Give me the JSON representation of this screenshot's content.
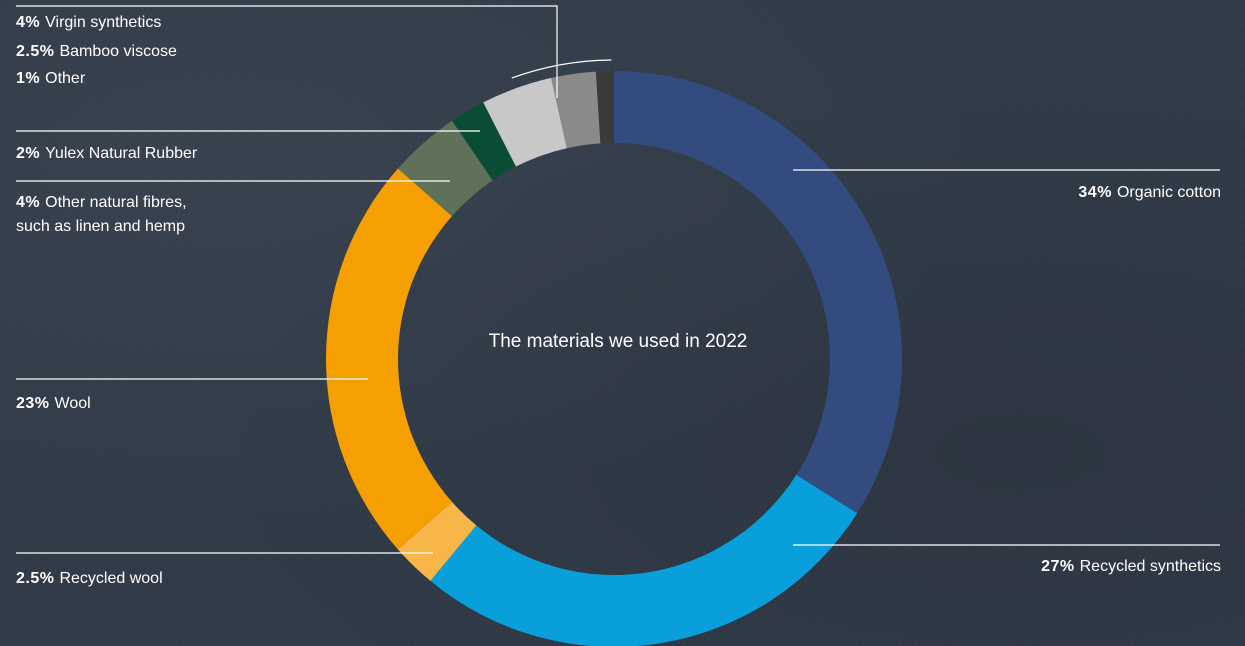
{
  "chart_data": {
    "type": "donut",
    "title": "The materials we used in 2022",
    "slices": [
      {
        "label": "Organic cotton",
        "value": 34,
        "display": "34%",
        "color": "#334b7f"
      },
      {
        "label": "Recycled synthetics",
        "value": 27,
        "display": "27%",
        "color": "#089fda"
      },
      {
        "label": "Recycled wool",
        "value": 2.5,
        "display": "2.5%",
        "color": "#f8b548"
      },
      {
        "label": "Wool",
        "value": 23,
        "display": "23%",
        "color": "#f59f00"
      },
      {
        "label": "Other natural fibres,",
        "label_line2": "such as linen and hemp",
        "value": 4,
        "display": "4%",
        "color": "#5f7259"
      },
      {
        "label": "Yulex Natural Rubber",
        "value": 2,
        "display": "2%",
        "color": "#0b4c34"
      },
      {
        "label": "Virgin synthetics",
        "value": 4,
        "display": "4%",
        "color": "#c8c8c8"
      },
      {
        "label": "Bamboo viscose",
        "value": 2.5,
        "display": "2.5%",
        "color": "#8a8a8a"
      },
      {
        "label": "Other",
        "value": 1,
        "display": "1%",
        "color": "#3a3a3a"
      }
    ],
    "line_color": "#ffffff"
  }
}
